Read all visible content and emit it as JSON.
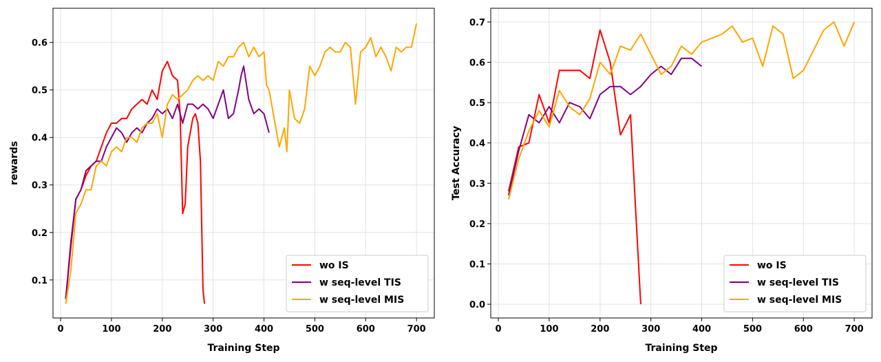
{
  "chart_data": [
    {
      "type": "line",
      "xlabel": "Training Step",
      "ylabel": "rewards",
      "xlim": [
        -15,
        735
      ],
      "ylim": [
        0.02,
        0.672
      ],
      "xticks": [
        0,
        100,
        200,
        300,
        400,
        500,
        600,
        700
      ],
      "yticks": [
        0.1,
        0.2,
        0.3,
        0.4,
        0.5,
        0.6
      ],
      "grid": true,
      "legend_position": "bottom-right",
      "series": [
        {
          "name": "wo IS",
          "color": "#ff0000",
          "x": [
            10,
            20,
            30,
            40,
            50,
            60,
            70,
            80,
            90,
            100,
            110,
            120,
            130,
            140,
            150,
            160,
            170,
            180,
            190,
            200,
            210,
            220,
            230,
            235,
            240,
            245,
            250,
            260,
            265,
            270,
            275,
            280,
            283
          ],
          "y": [
            0.06,
            0.18,
            0.27,
            0.29,
            0.32,
            0.34,
            0.35,
            0.38,
            0.41,
            0.43,
            0.43,
            0.44,
            0.44,
            0.46,
            0.47,
            0.48,
            0.47,
            0.5,
            0.48,
            0.54,
            0.56,
            0.53,
            0.52,
            0.45,
            0.24,
            0.26,
            0.38,
            0.44,
            0.45,
            0.43,
            0.35,
            0.08,
            0.05
          ]
        },
        {
          "name": "w seq-level TIS",
          "color": "#800080",
          "x": [
            10,
            20,
            30,
            40,
            50,
            60,
            70,
            80,
            90,
            100,
            110,
            120,
            130,
            140,
            150,
            160,
            170,
            180,
            190,
            200,
            210,
            220,
            230,
            240,
            250,
            260,
            270,
            280,
            290,
            300,
            310,
            320,
            330,
            340,
            350,
            355,
            360,
            370,
            380,
            390,
            400,
            410
          ],
          "y": [
            0.06,
            0.17,
            0.27,
            0.29,
            0.33,
            0.34,
            0.35,
            0.35,
            0.38,
            0.4,
            0.42,
            0.41,
            0.39,
            0.41,
            0.42,
            0.41,
            0.43,
            0.44,
            0.46,
            0.45,
            0.46,
            0.44,
            0.47,
            0.43,
            0.47,
            0.47,
            0.46,
            0.47,
            0.46,
            0.44,
            0.47,
            0.5,
            0.44,
            0.45,
            0.5,
            0.53,
            0.55,
            0.48,
            0.45,
            0.46,
            0.45,
            0.41
          ]
        },
        {
          "name": "w seq-level MIS",
          "color": "#ffa500",
          "x": [
            10,
            20,
            30,
            40,
            50,
            60,
            70,
            80,
            90,
            100,
            110,
            120,
            130,
            140,
            150,
            160,
            170,
            180,
            190,
            200,
            210,
            220,
            230,
            240,
            250,
            260,
            270,
            280,
            290,
            300,
            310,
            320,
            330,
            340,
            350,
            360,
            370,
            380,
            390,
            400,
            405,
            410,
            420,
            430,
            440,
            445,
            450,
            460,
            470,
            480,
            490,
            500,
            510,
            520,
            530,
            540,
            550,
            560,
            570,
            580,
            590,
            600,
            610,
            620,
            630,
            640,
            650,
            660,
            670,
            680,
            690,
            700
          ],
          "y": [
            0.05,
            0.12,
            0.24,
            0.26,
            0.29,
            0.29,
            0.34,
            0.35,
            0.34,
            0.37,
            0.38,
            0.37,
            0.4,
            0.4,
            0.39,
            0.42,
            0.43,
            0.43,
            0.45,
            0.4,
            0.47,
            0.49,
            0.48,
            0.49,
            0.5,
            0.52,
            0.53,
            0.52,
            0.53,
            0.52,
            0.56,
            0.55,
            0.57,
            0.57,
            0.59,
            0.6,
            0.57,
            0.59,
            0.57,
            0.58,
            0.51,
            0.5,
            0.44,
            0.38,
            0.42,
            0.37,
            0.5,
            0.44,
            0.43,
            0.46,
            0.55,
            0.53,
            0.55,
            0.58,
            0.59,
            0.58,
            0.58,
            0.6,
            0.59,
            0.47,
            0.58,
            0.59,
            0.61,
            0.57,
            0.59,
            0.57,
            0.54,
            0.59,
            0.58,
            0.59,
            0.59,
            0.64
          ]
        }
      ]
    },
    {
      "type": "line",
      "xlabel": "Training Step",
      "ylabel": "Test Accuracy",
      "xlim": [
        -15,
        735
      ],
      "ylim": [
        -0.034,
        0.734
      ],
      "xticks": [
        0,
        100,
        200,
        300,
        400,
        500,
        600,
        700
      ],
      "yticks": [
        0.0,
        0.1,
        0.2,
        0.3,
        0.4,
        0.5,
        0.6,
        0.7
      ],
      "grid": true,
      "legend_position": "bottom-right",
      "series": [
        {
          "name": "wo IS",
          "color": "#ff0000",
          "x": [
            20,
            40,
            60,
            80,
            100,
            120,
            140,
            160,
            180,
            200,
            220,
            240,
            260,
            280
          ],
          "y": [
            0.28,
            0.39,
            0.4,
            0.52,
            0.45,
            0.58,
            0.58,
            0.58,
            0.56,
            0.68,
            0.6,
            0.42,
            0.47,
            0.0
          ]
        },
        {
          "name": "w seq-level TIS",
          "color": "#800080",
          "x": [
            20,
            40,
            60,
            80,
            100,
            120,
            140,
            160,
            180,
            200,
            220,
            240,
            260,
            280,
            300,
            320,
            340,
            360,
            380,
            400
          ],
          "y": [
            0.27,
            0.38,
            0.47,
            0.45,
            0.49,
            0.45,
            0.5,
            0.49,
            0.46,
            0.52,
            0.54,
            0.54,
            0.52,
            0.54,
            0.57,
            0.59,
            0.57,
            0.61,
            0.61,
            0.59
          ]
        },
        {
          "name": "w seq-level MIS",
          "color": "#ffa500",
          "x": [
            20,
            40,
            60,
            80,
            100,
            120,
            140,
            160,
            180,
            200,
            220,
            240,
            260,
            280,
            300,
            320,
            340,
            360,
            380,
            400,
            420,
            440,
            460,
            480,
            500,
            520,
            540,
            560,
            580,
            600,
            620,
            640,
            660,
            680,
            700
          ],
          "y": [
            0.26,
            0.36,
            0.43,
            0.48,
            0.44,
            0.53,
            0.49,
            0.47,
            0.51,
            0.6,
            0.57,
            0.64,
            0.63,
            0.67,
            0.62,
            0.57,
            0.59,
            0.64,
            0.62,
            0.65,
            0.66,
            0.67,
            0.69,
            0.65,
            0.66,
            0.59,
            0.69,
            0.67,
            0.56,
            0.58,
            0.63,
            0.68,
            0.7,
            0.64,
            0.7
          ]
        }
      ]
    }
  ]
}
